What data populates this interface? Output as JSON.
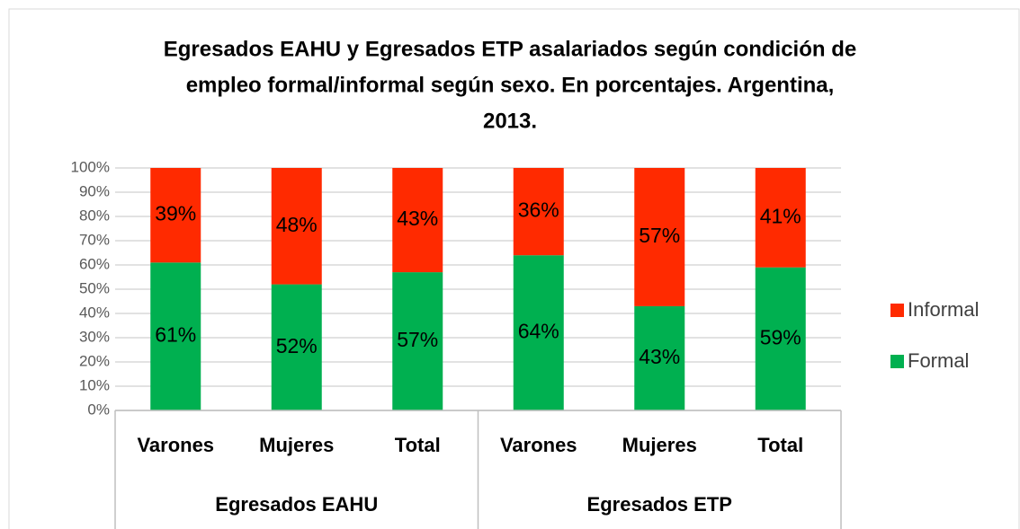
{
  "chart_data": {
    "type": "stacked_bar",
    "title": [
      "Egresados EAHU y Egresados ETP asalariados según condición de",
      "empleo formal/informal según sexo. En porcentajes. Argentina,",
      "2013."
    ],
    "groups": [
      {
        "name": "Egresados EAHU",
        "categories": [
          "Varones",
          "Mujeres",
          "Total"
        ]
      },
      {
        "name": "Egresados ETP",
        "categories": [
          "Varones",
          "Mujeres",
          "Total"
        ]
      }
    ],
    "series": [
      {
        "name": "Formal",
        "color": "#00b050",
        "values": [
          61,
          52,
          57,
          64,
          43,
          59
        ],
        "value_labels": [
          "61%",
          "52%",
          "57%",
          "64%",
          "43%",
          "59%"
        ]
      },
      {
        "name": "Informal",
        "color": "#ff2a00",
        "values": [
          39,
          48,
          43,
          36,
          57,
          41
        ],
        "value_labels": [
          "39%",
          "48%",
          "43%",
          "36%",
          "57%",
          "41%"
        ]
      }
    ],
    "ylim": [
      0,
      100
    ],
    "yticks": [
      {
        "value": 0,
        "label": "0%"
      },
      {
        "value": 10,
        "label": "10%"
      },
      {
        "value": 20,
        "label": "20%"
      },
      {
        "value": 30,
        "label": "30%"
      },
      {
        "value": 40,
        "label": "40%"
      },
      {
        "value": 50,
        "label": "50%"
      },
      {
        "value": 60,
        "label": "60%"
      },
      {
        "value": 70,
        "label": "70%"
      },
      {
        "value": 80,
        "label": "80%"
      },
      {
        "value": 90,
        "label": "90%"
      },
      {
        "value": 100,
        "label": "100%"
      }
    ],
    "grid": true,
    "legend": "right"
  }
}
